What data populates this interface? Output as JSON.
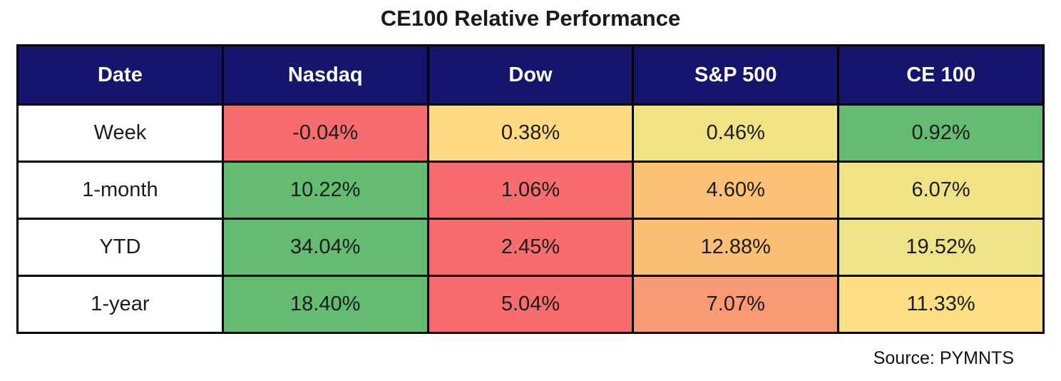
{
  "title": "CE100 Relative Performance",
  "source_note": "Source: PYMNTS",
  "colors": {
    "header_bg": "#15156e",
    "header_text": "#ffffff",
    "border": "#000000",
    "row_label_bg": "#ffffff",
    "negative_red": "#f76d6d",
    "positive_green": "#63bc72"
  },
  "chart_data": {
    "type": "table",
    "title": "CE100 Relative Performance",
    "columns": [
      "Date",
      "Nasdaq",
      "Dow",
      "S&P 500",
      "CE 100"
    ],
    "rows": [
      {
        "label": "Week",
        "cells": [
          {
            "value": "-0.04%",
            "bg": "#f76d6d"
          },
          {
            "value": "0.38%",
            "bg": "#fed980"
          },
          {
            "value": "0.46%",
            "bg": "#f1e284"
          },
          {
            "value": "0.92%",
            "bg": "#63bc72"
          }
        ]
      },
      {
        "label": "1-month",
        "cells": [
          {
            "value": "10.22%",
            "bg": "#63bc72"
          },
          {
            "value": "1.06%",
            "bg": "#f76d6d"
          },
          {
            "value": "4.60%",
            "bg": "#fbc175"
          },
          {
            "value": "6.07%",
            "bg": "#f0e386"
          }
        ]
      },
      {
        "label": "YTD",
        "cells": [
          {
            "value": "34.04%",
            "bg": "#63bc72"
          },
          {
            "value": "2.45%",
            "bg": "#f76d6d"
          },
          {
            "value": "12.88%",
            "bg": "#fbbf74"
          },
          {
            "value": "19.52%",
            "bg": "#efe387"
          }
        ]
      },
      {
        "label": "1-year",
        "cells": [
          {
            "value": "18.40%",
            "bg": "#63bc72"
          },
          {
            "value": "5.04%",
            "bg": "#f76d6d"
          },
          {
            "value": "7.07%",
            "bg": "#fa9a73"
          },
          {
            "value": "11.33%",
            "bg": "#fbdf82"
          }
        ]
      }
    ],
    "value_format": "percent",
    "numeric_values": {
      "Week": {
        "Nasdaq": -0.04,
        "Dow": 0.38,
        "S&P 500": 0.46,
        "CE 100": 0.92
      },
      "1-month": {
        "Nasdaq": 10.22,
        "Dow": 1.06,
        "S&P 500": 4.6,
        "CE 100": 6.07
      },
      "YTD": {
        "Nasdaq": 34.04,
        "Dow": 2.45,
        "S&P 500": 12.88,
        "CE 100": 19.52
      },
      "1-year": {
        "Nasdaq": 18.4,
        "Dow": 5.04,
        "S&P 500": 7.07,
        "CE 100": 11.33
      }
    }
  }
}
